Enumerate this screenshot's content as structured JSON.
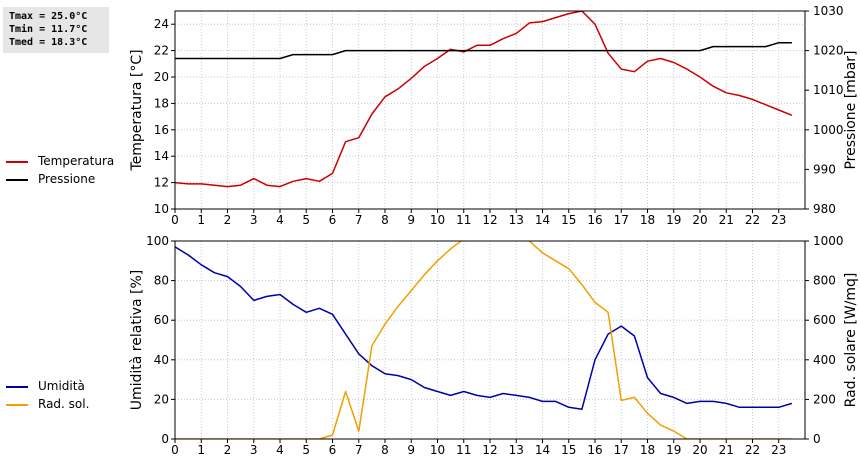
{
  "stats": {
    "tmax": "Tmax = 25.0°C",
    "tmin": "Tmin = 11.7°C",
    "tmed": "Tmed = 18.3°C"
  },
  "legend_top": [
    {
      "label": "Temperatura",
      "color": "#cc0000"
    },
    {
      "label": "Pressione",
      "color": "#000000"
    }
  ],
  "legend_bottom": [
    {
      "label": "Umidità",
      "color": "#0000aa"
    },
    {
      "label": "Rad. sol.",
      "color": "#f0a000"
    }
  ],
  "chart_data": [
    {
      "type": "line",
      "xlim": [
        0,
        24
      ],
      "x_ticks": [
        0,
        1,
        2,
        3,
        4,
        5,
        6,
        7,
        8,
        9,
        10,
        11,
        12,
        13,
        14,
        15,
        16,
        17,
        18,
        19,
        20,
        21,
        22,
        23
      ],
      "ylabel": "Temperatura [°C]",
      "ylim": [
        10,
        25
      ],
      "y_ticks": [
        10,
        12,
        14,
        16,
        18,
        20,
        22,
        24
      ],
      "y2label": "Pressione [mbar]",
      "y2lim": [
        980,
        1030
      ],
      "y2_ticks": [
        980,
        990,
        1000,
        1010,
        1020,
        1030
      ],
      "grid": true,
      "series": [
        {
          "name": "Temperatura",
          "axis": "left",
          "color": "#cc0000",
          "x": [
            0,
            0.5,
            1,
            1.5,
            2,
            2.5,
            3,
            3.5,
            4,
            4.5,
            5,
            5.5,
            6,
            6.5,
            7,
            7.5,
            8,
            8.5,
            9,
            9.5,
            10,
            10.5,
            11,
            11.5,
            12,
            12.5,
            13,
            13.5,
            14,
            14.5,
            15,
            15.5,
            16,
            16.5,
            17,
            17.5,
            18,
            18.5,
            19,
            19.5,
            20,
            20.5,
            21,
            21.5,
            22,
            22.5,
            23,
            23.5
          ],
          "y": [
            12.0,
            11.9,
            11.9,
            11.8,
            11.7,
            11.8,
            12.3,
            11.8,
            11.7,
            12.1,
            12.3,
            12.1,
            12.7,
            15.1,
            15.4,
            17.2,
            18.5,
            19.1,
            19.9,
            20.8,
            21.4,
            22.1,
            21.9,
            22.4,
            22.4,
            22.9,
            23.3,
            24.1,
            24.2,
            24.5,
            24.8,
            25.0,
            24.0,
            21.8,
            20.6,
            20.4,
            21.2,
            21.4,
            21.1,
            20.6,
            20.0,
            19.3,
            18.8,
            18.6,
            18.3,
            17.9,
            17.5,
            17.1
          ]
        },
        {
          "name": "Pressione",
          "axis": "right",
          "color": "#000000",
          "x": [
            0,
            4,
            4.5,
            6,
            6.5,
            20,
            20.5,
            22.5,
            23,
            23.5
          ],
          "y": [
            1018,
            1018,
            1019,
            1019,
            1020,
            1020,
            1021,
            1021,
            1022,
            1022
          ]
        }
      ]
    },
    {
      "type": "line",
      "xlim": [
        0,
        24
      ],
      "x_ticks": [
        0,
        1,
        2,
        3,
        4,
        5,
        6,
        7,
        8,
        9,
        10,
        11,
        12,
        13,
        14,
        15,
        16,
        17,
        18,
        19,
        20,
        21,
        22,
        23
      ],
      "ylabel": "Umidità relativa [%]",
      "ylim": [
        0,
        100
      ],
      "y_ticks": [
        0,
        20,
        40,
        60,
        80,
        100
      ],
      "y2label": "Rad. solare [W/mq]",
      "y2lim": [
        0,
        1000
      ],
      "y2_ticks": [
        0,
        200,
        400,
        600,
        800,
        1000
      ],
      "grid": true,
      "series": [
        {
          "name": "Umidità",
          "axis": "left",
          "color": "#0000aa",
          "x": [
            0,
            0.5,
            1,
            1.5,
            2,
            2.5,
            3,
            3.5,
            4,
            4.5,
            5,
            5.5,
            6,
            6.5,
            7,
            7.5,
            8,
            8.5,
            9,
            9.5,
            10,
            10.5,
            11,
            11.5,
            12,
            12.5,
            13,
            13.5,
            14,
            14.5,
            15,
            15.5,
            16,
            16.5,
            17,
            17.5,
            18,
            18.5,
            19,
            19.5,
            20,
            20.5,
            21,
            21.5,
            22,
            22.5,
            23,
            23.5
          ],
          "y": [
            97,
            93,
            88,
            84,
            82,
            77,
            70,
            72,
            73,
            68,
            64,
            66,
            63,
            53,
            43,
            37,
            33,
            32,
            30,
            26,
            24,
            22,
            24,
            22,
            21,
            23,
            22,
            21,
            19,
            19,
            16,
            15,
            40,
            53,
            57,
            52,
            31,
            23,
            21,
            18,
            19,
            19,
            18,
            16,
            16,
            16,
            16,
            18
          ]
        },
        {
          "name": "Rad. sol.",
          "axis": "right",
          "color": "#f0a000",
          "x": [
            0,
            5.5,
            6,
            6.5,
            7,
            7.5,
            8,
            8.5,
            9,
            9.5,
            10,
            10.5,
            11,
            11.5,
            12,
            12.5,
            13,
            13.5,
            14,
            14.5,
            15,
            15.5,
            16,
            16.5,
            17,
            17.5,
            18,
            18.5,
            19,
            19.5,
            20,
            21,
            22,
            23,
            23.5
          ],
          "y": [
            0,
            0,
            20,
            240,
            40,
            470,
            580,
            670,
            750,
            830,
            900,
            960,
            1010,
            1050,
            1060,
            1050,
            1030,
            1000,
            940,
            900,
            860,
            780,
            690,
            640,
            195,
            210,
            130,
            70,
            40,
            0,
            0,
            0,
            0,
            0,
            0
          ]
        }
      ]
    }
  ]
}
